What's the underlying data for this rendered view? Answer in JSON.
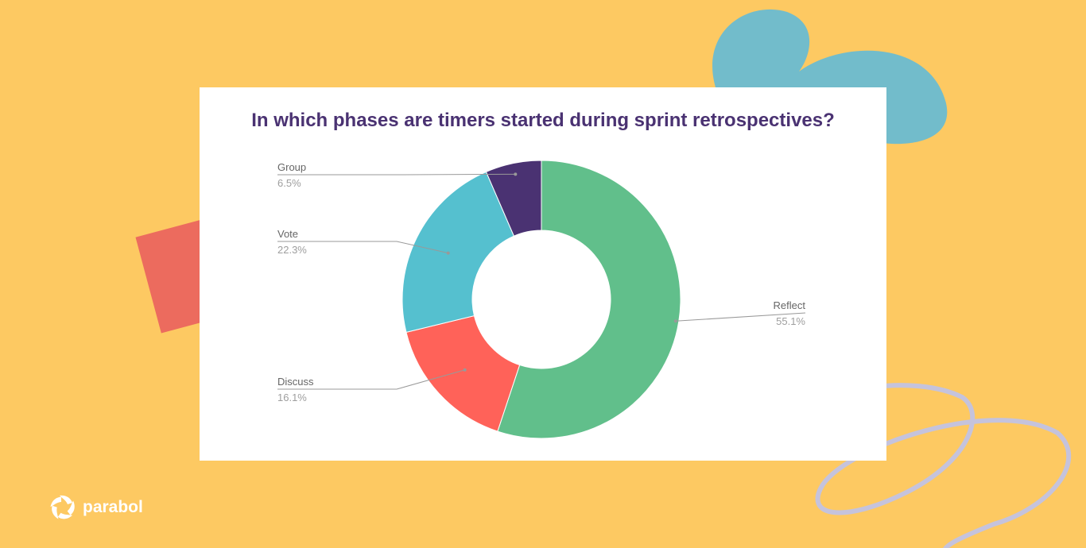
{
  "brand": {
    "name": "parabol"
  },
  "chart_data": {
    "type": "pie",
    "donut": true,
    "title": "In which phases are timers started during sprint retrospectives?",
    "categories": [
      "Reflect",
      "Discuss",
      "Vote",
      "Group"
    ],
    "values": [
      55.1,
      16.1,
      22.3,
      6.5
    ],
    "value_labels": [
      "55.1%",
      "16.1%",
      "22.3%",
      "6.5%"
    ],
    "colors": [
      "#61bf8b",
      "#ff6259",
      "#55c0cf",
      "#4a3272"
    ],
    "legend": "none",
    "labels": "outside with leader lines"
  }
}
